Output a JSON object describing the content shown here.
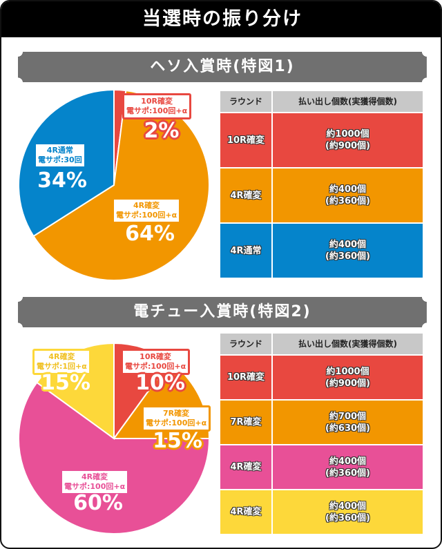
{
  "title": "当選時の振り分け",
  "sections": [
    {
      "heading": "ヘソ入賞時(特図1)",
      "table": {
        "headers": [
          "ラウンド",
          "払い出し個数(実獲得個数)"
        ],
        "rows": [
          {
            "round": "10R確変",
            "payout": "約1000個",
            "actual": "(約900個)",
            "color": "#e84840"
          },
          {
            "round": "4R確変",
            "payout": "約400個",
            "actual": "(約360個)",
            "color": "#f29600"
          },
          {
            "round": "4R通常",
            "payout": "約400個",
            "actual": "(約360個)",
            "color": "#0584cb"
          }
        ]
      }
    },
    {
      "heading": "電チュー入賞時(特図2)",
      "table": {
        "headers": [
          "ラウンド",
          "払い出し個数(実獲得個数)"
        ],
        "rows": [
          {
            "round": "10R確変",
            "payout": "約1000個",
            "actual": "(約900個)",
            "color": "#e84840"
          },
          {
            "round": "7R確変",
            "payout": "約700個",
            "actual": "(約630個)",
            "color": "#f29600"
          },
          {
            "round": "4R確変",
            "payout": "約400個",
            "actual": "(約360個)",
            "color": "#e85097"
          },
          {
            "round": "4R確変",
            "payout": "約400個",
            "actual": "(約360個)",
            "color": "#fdd83a"
          }
        ]
      }
    }
  ],
  "chart_data": [
    {
      "type": "pie",
      "start": "top",
      "direction": "clockwise",
      "slices": [
        {
          "label": "10R確変",
          "sub": "電サポ:100回+α",
          "value": 2,
          "text": "2%",
          "color": "#e84840"
        },
        {
          "label": "4R確変",
          "sub": "電サポ:100回+α",
          "value": 64,
          "text": "64%",
          "color": "#f29600"
        },
        {
          "label": "4R通常",
          "sub": "電サポ:30回",
          "value": 34,
          "text": "34%",
          "color": "#0584cb"
        }
      ]
    },
    {
      "type": "pie",
      "start": "top",
      "direction": "clockwise",
      "slices": [
        {
          "label": "10R確変",
          "sub": "電サポ:100回+α",
          "value": 10,
          "text": "10%",
          "color": "#e84840"
        },
        {
          "label": "7R確変",
          "sub": "電サポ:100回+α",
          "value": 15,
          "text": "15%",
          "color": "#f29600"
        },
        {
          "label": "4R確変",
          "sub": "電サポ:100回+α",
          "value": 60,
          "text": "60%",
          "color": "#e85097"
        },
        {
          "label": "4R確変",
          "sub": "電サポ:1回+α",
          "value": 15,
          "text": "15%",
          "color": "#fdd83a"
        }
      ]
    }
  ]
}
